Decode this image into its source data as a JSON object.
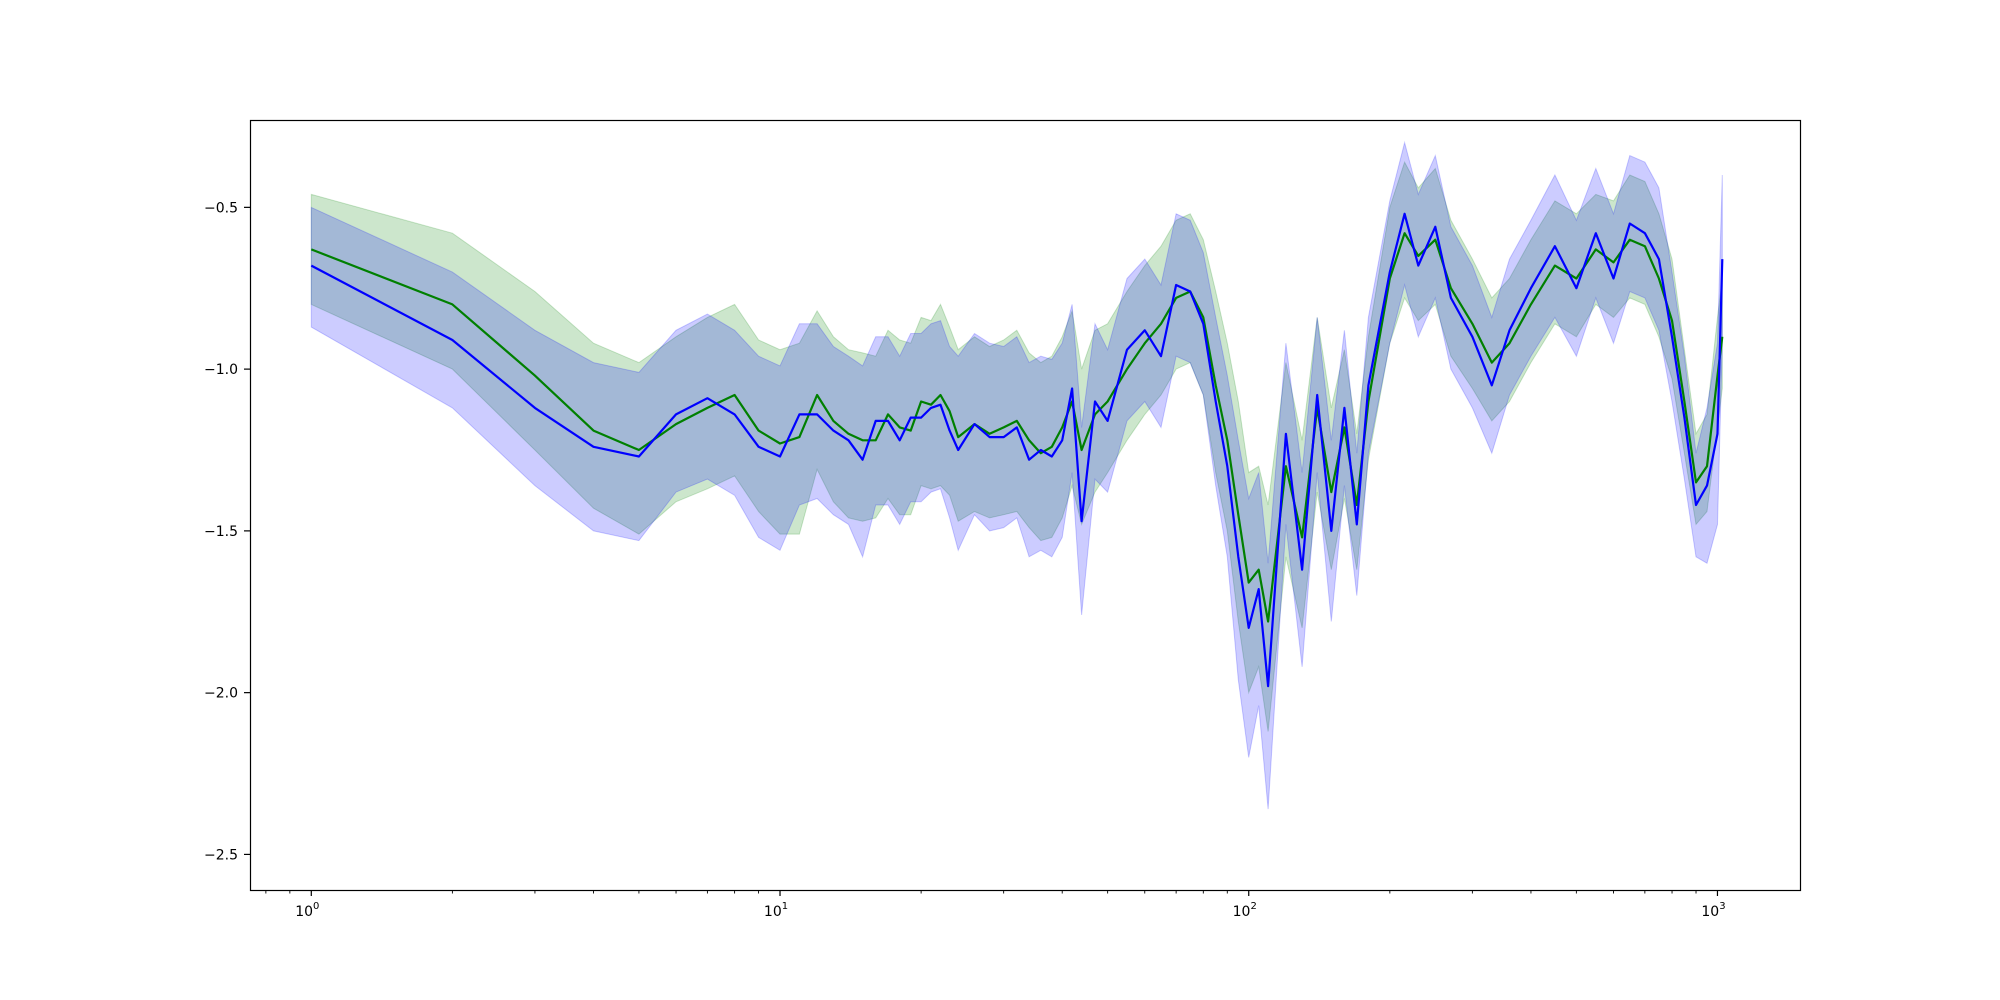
{
  "chart_data": {
    "type": "line",
    "title": "",
    "xlabel": "",
    "ylabel": "",
    "x_scale": "log",
    "xlim": [
      0.74,
      1500
    ],
    "ylim": [
      -2.61,
      -0.23
    ],
    "grid": false,
    "legend": "none",
    "x_ticks": [
      {
        "value": 1,
        "base": "10",
        "exp": "0"
      },
      {
        "value": 10,
        "base": "10",
        "exp": "1"
      },
      {
        "value": 100,
        "base": "10",
        "exp": "2"
      },
      {
        "value": 1000,
        "base": "10",
        "exp": "3"
      }
    ],
    "y_ticks": [
      {
        "value": -0.5,
        "label": "−0.5"
      },
      {
        "value": -1.0,
        "label": "−1.0"
      },
      {
        "value": -1.5,
        "label": "−1.5"
      },
      {
        "value": -2.0,
        "label": "−2.0"
      },
      {
        "value": -2.5,
        "label": "−2.5"
      }
    ],
    "series": [
      {
        "color": "#008000",
        "band_fill": "#008000",
        "band_opacity": 0.2,
        "x": [
          1,
          2,
          3,
          4,
          5,
          6,
          7,
          8,
          9,
          10,
          11,
          12,
          13,
          14,
          15,
          16,
          17,
          18,
          19,
          20,
          21,
          22,
          23,
          24,
          26,
          28,
          30,
          32,
          34,
          36,
          38,
          40,
          42,
          44,
          47,
          50,
          55,
          60,
          65,
          70,
          75,
          80,
          85,
          90,
          95,
          100,
          105,
          110,
          120,
          130,
          140,
          150,
          160,
          170,
          180,
          200,
          215,
          230,
          250,
          270,
          300,
          330,
          360,
          400,
          450,
          500,
          550,
          600,
          650,
          700,
          750,
          800,
          850,
          900,
          950,
          1000,
          1024
        ],
        "mean": [
          -0.63,
          -0.8,
          -1.02,
          -1.19,
          -1.25,
          -1.17,
          -1.12,
          -1.08,
          -1.19,
          -1.23,
          -1.21,
          -1.08,
          -1.16,
          -1.2,
          -1.22,
          -1.22,
          -1.14,
          -1.18,
          -1.19,
          -1.1,
          -1.11,
          -1.08,
          -1.13,
          -1.21,
          -1.17,
          -1.2,
          -1.18,
          -1.16,
          -1.22,
          -1.26,
          -1.24,
          -1.18,
          -1.1,
          -1.25,
          -1.14,
          -1.1,
          -1.0,
          -0.92,
          -0.86,
          -0.78,
          -0.76,
          -0.84,
          -1.05,
          -1.22,
          -1.45,
          -1.66,
          -1.62,
          -1.78,
          -1.3,
          -1.52,
          -1.12,
          -1.38,
          -1.18,
          -1.42,
          -1.1,
          -0.72,
          -0.58,
          -0.65,
          -0.6,
          -0.75,
          -0.86,
          -0.98,
          -0.92,
          -0.8,
          -0.68,
          -0.72,
          -0.63,
          -0.67,
          -0.6,
          -0.62,
          -0.72,
          -0.85,
          -1.1,
          -1.35,
          -1.3,
          -1.02,
          -0.9
        ],
        "lower": [
          -0.8,
          -1.0,
          -1.25,
          -1.43,
          -1.51,
          -1.41,
          -1.37,
          -1.33,
          -1.44,
          -1.51,
          -1.51,
          -1.31,
          -1.41,
          -1.46,
          -1.47,
          -1.46,
          -1.4,
          -1.45,
          -1.45,
          -1.36,
          -1.37,
          -1.36,
          -1.39,
          -1.47,
          -1.44,
          -1.46,
          -1.45,
          -1.44,
          -1.49,
          -1.53,
          -1.52,
          -1.46,
          -1.36,
          -1.48,
          -1.38,
          -1.32,
          -1.22,
          -1.14,
          -1.08,
          -1.0,
          -0.98,
          -1.08,
          -1.32,
          -1.5,
          -1.78,
          -2.0,
          -1.92,
          -2.12,
          -1.58,
          -1.8,
          -1.38,
          -1.62,
          -1.4,
          -1.62,
          -1.28,
          -0.92,
          -0.78,
          -0.85,
          -0.8,
          -0.96,
          -1.06,
          -1.16,
          -1.1,
          -0.98,
          -0.86,
          -0.9,
          -0.8,
          -0.84,
          -0.78,
          -0.8,
          -0.9,
          -1.03,
          -1.26,
          -1.48,
          -1.44,
          -1.18,
          -1.06
        ],
        "upper": [
          -0.46,
          -0.58,
          -0.76,
          -0.92,
          -0.98,
          -0.9,
          -0.84,
          -0.8,
          -0.91,
          -0.94,
          -0.92,
          -0.82,
          -0.9,
          -0.94,
          -0.95,
          -0.96,
          -0.88,
          -0.91,
          -0.92,
          -0.84,
          -0.85,
          -0.8,
          -0.87,
          -0.94,
          -0.9,
          -0.93,
          -0.91,
          -0.88,
          -0.95,
          -0.98,
          -0.96,
          -0.9,
          -0.82,
          -1.0,
          -0.88,
          -0.86,
          -0.76,
          -0.68,
          -0.62,
          -0.54,
          -0.52,
          -0.6,
          -0.76,
          -0.92,
          -1.1,
          -1.32,
          -1.3,
          -1.42,
          -0.98,
          -1.22,
          -0.84,
          -1.12,
          -0.94,
          -1.2,
          -0.9,
          -0.5,
          -0.36,
          -0.44,
          -0.38,
          -0.54,
          -0.66,
          -0.78,
          -0.72,
          -0.6,
          -0.48,
          -0.52,
          -0.46,
          -0.48,
          -0.4,
          -0.42,
          -0.52,
          -0.66,
          -0.94,
          -1.2,
          -1.14,
          -0.84,
          -0.72
        ]
      },
      {
        "color": "#0000ff",
        "band_fill": "#0000ff",
        "band_opacity": 0.2,
        "x": [
          1,
          2,
          3,
          4,
          5,
          6,
          7,
          8,
          9,
          10,
          11,
          12,
          13,
          14,
          15,
          16,
          17,
          18,
          19,
          20,
          21,
          22,
          23,
          24,
          26,
          28,
          30,
          32,
          34,
          36,
          38,
          40,
          42,
          44,
          47,
          50,
          55,
          60,
          65,
          70,
          75,
          80,
          85,
          90,
          95,
          100,
          105,
          110,
          120,
          130,
          140,
          150,
          160,
          170,
          180,
          200,
          215,
          230,
          250,
          270,
          300,
          330,
          360,
          400,
          450,
          500,
          550,
          600,
          650,
          700,
          750,
          800,
          850,
          900,
          950,
          1000,
          1024
        ],
        "mean": [
          -0.68,
          -0.91,
          -1.12,
          -1.24,
          -1.27,
          -1.14,
          -1.09,
          -1.14,
          -1.24,
          -1.27,
          -1.14,
          -1.14,
          -1.19,
          -1.22,
          -1.28,
          -1.16,
          -1.16,
          -1.22,
          -1.15,
          -1.15,
          -1.12,
          -1.11,
          -1.19,
          -1.25,
          -1.17,
          -1.21,
          -1.21,
          -1.18,
          -1.28,
          -1.25,
          -1.27,
          -1.22,
          -1.06,
          -1.47,
          -1.1,
          -1.16,
          -0.94,
          -0.88,
          -0.96,
          -0.74,
          -0.76,
          -0.86,
          -1.1,
          -1.3,
          -1.58,
          -1.8,
          -1.68,
          -1.98,
          -1.2,
          -1.62,
          -1.08,
          -1.5,
          -1.12,
          -1.48,
          -1.05,
          -0.7,
          -0.52,
          -0.68,
          -0.56,
          -0.78,
          -0.9,
          -1.05,
          -0.88,
          -0.75,
          -0.62,
          -0.75,
          -0.58,
          -0.72,
          -0.55,
          -0.58,
          -0.66,
          -0.9,
          -1.15,
          -1.42,
          -1.36,
          -1.2,
          -0.66
        ],
        "lower": [
          -0.87,
          -1.12,
          -1.36,
          -1.5,
          -1.53,
          -1.38,
          -1.34,
          -1.39,
          -1.52,
          -1.56,
          -1.42,
          -1.4,
          -1.45,
          -1.48,
          -1.58,
          -1.42,
          -1.42,
          -1.48,
          -1.41,
          -1.41,
          -1.38,
          -1.37,
          -1.46,
          -1.56,
          -1.45,
          -1.5,
          -1.49,
          -1.46,
          -1.58,
          -1.56,
          -1.58,
          -1.52,
          -1.32,
          -1.76,
          -1.34,
          -1.38,
          -1.16,
          -1.1,
          -1.18,
          -0.96,
          -0.98,
          -1.08,
          -1.36,
          -1.58,
          -1.96,
          -2.2,
          -2.04,
          -2.36,
          -1.48,
          -1.92,
          -1.32,
          -1.78,
          -1.36,
          -1.7,
          -1.26,
          -0.92,
          -0.74,
          -0.9,
          -0.78,
          -1.0,
          -1.12,
          -1.26,
          -1.08,
          -0.96,
          -0.84,
          -0.96,
          -0.78,
          -0.92,
          -0.76,
          -0.78,
          -0.88,
          -1.1,
          -1.34,
          -1.58,
          -1.6,
          -1.48,
          -0.92
        ],
        "upper": [
          -0.5,
          -0.7,
          -0.88,
          -0.98,
          -1.01,
          -0.88,
          -0.83,
          -0.88,
          -0.96,
          -0.99,
          -0.86,
          -0.86,
          -0.93,
          -0.96,
          -0.99,
          -0.9,
          -0.9,
          -0.96,
          -0.89,
          -0.89,
          -0.86,
          -0.85,
          -0.93,
          -0.96,
          -0.89,
          -0.92,
          -0.93,
          -0.9,
          -0.98,
          -0.96,
          -0.97,
          -0.92,
          -0.8,
          -1.18,
          -0.86,
          -0.94,
          -0.72,
          -0.66,
          -0.74,
          -0.52,
          -0.54,
          -0.64,
          -0.84,
          -1.02,
          -1.22,
          -1.4,
          -1.32,
          -1.6,
          -0.92,
          -1.32,
          -0.84,
          -1.22,
          -0.88,
          -1.26,
          -0.84,
          -0.48,
          -0.3,
          -0.46,
          -0.34,
          -0.56,
          -0.68,
          -0.84,
          -0.66,
          -0.54,
          -0.4,
          -0.54,
          -0.38,
          -0.52,
          -0.34,
          -0.36,
          -0.44,
          -0.7,
          -0.96,
          -1.26,
          -1.12,
          -0.92,
          -0.4
        ]
      }
    ]
  }
}
